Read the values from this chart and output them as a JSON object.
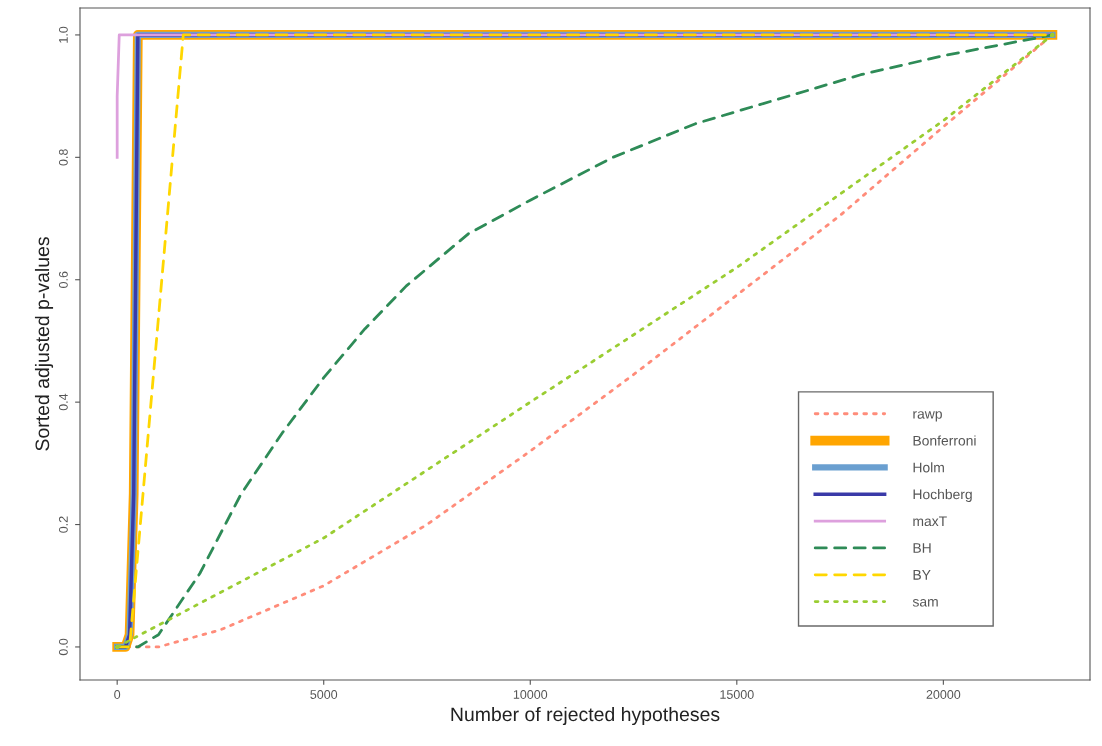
{
  "chart_data": {
    "type": "line",
    "xlabel": "Number of rejected hypotheses",
    "ylabel": "Sorted adjusted p-values",
    "xlim": [
      -900,
      23550
    ],
    "ylim": [
      -0.054,
      1.044
    ],
    "xticks": [
      0,
      5000,
      10000,
      15000,
      20000
    ],
    "yticks": [
      {
        "value": 0,
        "label": "0.0"
      },
      {
        "value": 0.2,
        "label": "0.2"
      },
      {
        "value": 0.4,
        "label": "0.4"
      },
      {
        "value": 0.6,
        "label": "0.6"
      },
      {
        "value": 0.8,
        "label": "0.8"
      },
      {
        "value": 1,
        "label": "1.0"
      }
    ],
    "grid": false,
    "legend": "bottom right",
    "marker": "none",
    "series": [
      {
        "name": "rawp",
        "color": "#ff8c7a",
        "line_style": "dotted",
        "x": [
          0,
          1000,
          2500,
          5000,
          7500,
          10000,
          12500,
          15000,
          17500,
          20000,
          22640
        ],
        "values": [
          0,
          0,
          0.028,
          0.1,
          0.2,
          0.32,
          0.445,
          0.575,
          0.705,
          0.85,
          1
        ]
      },
      {
        "name": "Bonferroni",
        "color": "#ffa500",
        "line_style": "solid",
        "x": [
          0,
          200,
          300,
          400,
          500,
          22640
        ],
        "values": [
          0,
          0,
          0.02,
          0.25,
          1,
          1
        ]
      },
      {
        "name": "Holm",
        "color": "#6a9fd0",
        "line_style": "solid",
        "x": [
          0,
          200,
          300,
          400,
          500,
          22640
        ],
        "values": [
          0,
          0,
          0.02,
          0.25,
          1,
          1
        ]
      },
      {
        "name": "Hochberg",
        "color": "#3a3aa8",
        "line_style": "solid",
        "x": [
          0,
          200,
          300,
          400,
          500,
          22640
        ],
        "values": [
          0,
          0,
          0.02,
          0.25,
          1,
          1
        ]
      },
      {
        "name": "maxT",
        "color": "#dda0dd",
        "line_style": "solid",
        "x": [
          0,
          0,
          50,
          22640
        ],
        "values": [
          0.8,
          0.9,
          1,
          1
        ]
      },
      {
        "name": "BH",
        "color": "#2e8b57",
        "line_style": "dashed",
        "x": [
          0,
          500,
          1000,
          2000,
          3000,
          4000,
          5000,
          6000,
          7000,
          8500,
          10000,
          12000,
          14000,
          16000,
          18000,
          20000,
          22640
        ],
        "values": [
          0,
          0,
          0.02,
          0.12,
          0.25,
          0.35,
          0.44,
          0.52,
          0.59,
          0.675,
          0.73,
          0.8,
          0.855,
          0.895,
          0.935,
          0.966,
          1
        ]
      },
      {
        "name": "BY",
        "color": "#ffd700",
        "line_style": "dashed",
        "x": [
          0,
          300,
          1600,
          22640
        ],
        "values": [
          0,
          0,
          1,
          1
        ]
      },
      {
        "name": "sam",
        "color": "#9acd32",
        "line_style": "dotted",
        "x": [
          0,
          5000,
          10000,
          15000,
          20000,
          22640
        ],
        "values": [
          0,
          0.178,
          0.4,
          0.62,
          0.86,
          1
        ]
      }
    ]
  }
}
